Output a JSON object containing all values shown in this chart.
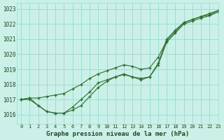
{
  "title": "Graphe pression niveau de la mer (hPa)",
  "bg_color": "#caf0e8",
  "grid_color": "#9dddd0",
  "line_color": "#2d6e2d",
  "xlim": [
    -0.5,
    23
  ],
  "ylim": [
    1015.4,
    1023.4
  ],
  "yticks": [
    1016,
    1017,
    1018,
    1019,
    1020,
    1021,
    1022,
    1023
  ],
  "xticks": [
    0,
    1,
    2,
    3,
    4,
    5,
    6,
    7,
    8,
    9,
    10,
    11,
    12,
    13,
    14,
    15,
    16,
    17,
    18,
    19,
    20,
    21,
    22,
    23
  ],
  "series": [
    [
      1017.0,
      1017.1,
      1017.1,
      1017.2,
      1017.3,
      1017.4,
      1017.7,
      1018.0,
      1018.4,
      1018.7,
      1018.9,
      1019.1,
      1019.3,
      1019.2,
      1019.0,
      1019.1,
      1019.8,
      1020.9,
      1021.5,
      1022.1,
      1022.3,
      1022.5,
      1022.7,
      1022.9
    ],
    [
      1017.0,
      1017.1,
      1016.6,
      1016.2,
      1016.1,
      1016.1,
      1016.5,
      1017.0,
      1017.5,
      1018.1,
      1018.3,
      1018.5,
      1018.7,
      1018.5,
      1018.4,
      1018.5,
      1019.4,
      1021.0,
      1021.6,
      1022.1,
      1022.3,
      1022.5,
      1022.6,
      1022.9
    ],
    [
      1017.0,
      1017.0,
      1016.6,
      1016.2,
      1016.1,
      1016.1,
      1016.3,
      1016.6,
      1017.2,
      1017.8,
      1018.2,
      1018.5,
      1018.65,
      1018.5,
      1018.3,
      1018.5,
      1019.3,
      1020.8,
      1021.4,
      1022.0,
      1022.2,
      1022.4,
      1022.55,
      1022.8
    ]
  ]
}
